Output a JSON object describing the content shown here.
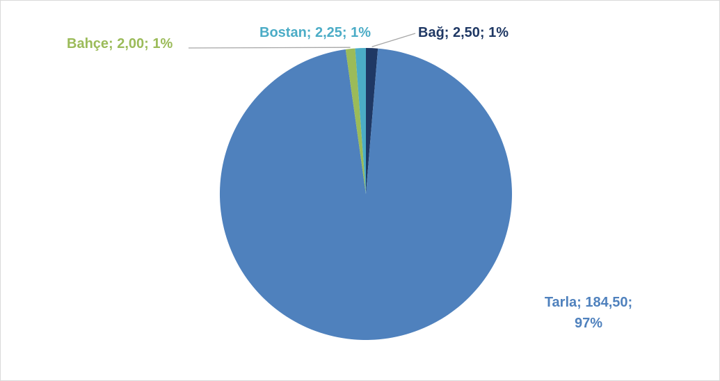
{
  "chart_data": {
    "type": "pie",
    "title": "",
    "start_angle_deg": 0,
    "direction": "clockwise",
    "slices": [
      {
        "name": "Bağ",
        "value": 2.5,
        "value_label": "2,50",
        "percent_label": "1%",
        "color": "#1f3864",
        "label_color": "#1f3864"
      },
      {
        "name": "Tarla",
        "value": 184.5,
        "value_label": "184,50",
        "percent_label": "97%",
        "color": "#4f81bd",
        "label_color": "#4f81bd"
      },
      {
        "name": "Bahçe",
        "value": 2.0,
        "value_label": "2,00",
        "percent_label": "1%",
        "color": "#9bbb59",
        "label_color": "#9bbb59"
      },
      {
        "name": "Bostan",
        "value": 2.25,
        "value_label": "2,25",
        "percent_label": "1%",
        "color": "#4bacc6",
        "label_color": "#4bacc6"
      }
    ],
    "data_labels": [
      {
        "slice": "Tarla",
        "lines": [
          "Tarla; 184,50;",
          "97%"
        ]
      },
      {
        "slice": "Bahçe",
        "lines": [
          "Bahçe; 2,00; 1%"
        ]
      },
      {
        "slice": "Bostan",
        "lines": [
          "Bostan; 2,25; 1%"
        ]
      },
      {
        "slice": "Bağ",
        "lines": [
          "Bağ; 2,50; 1%"
        ]
      }
    ],
    "legend": "none",
    "leader_line_color": "#a6a6a6"
  }
}
